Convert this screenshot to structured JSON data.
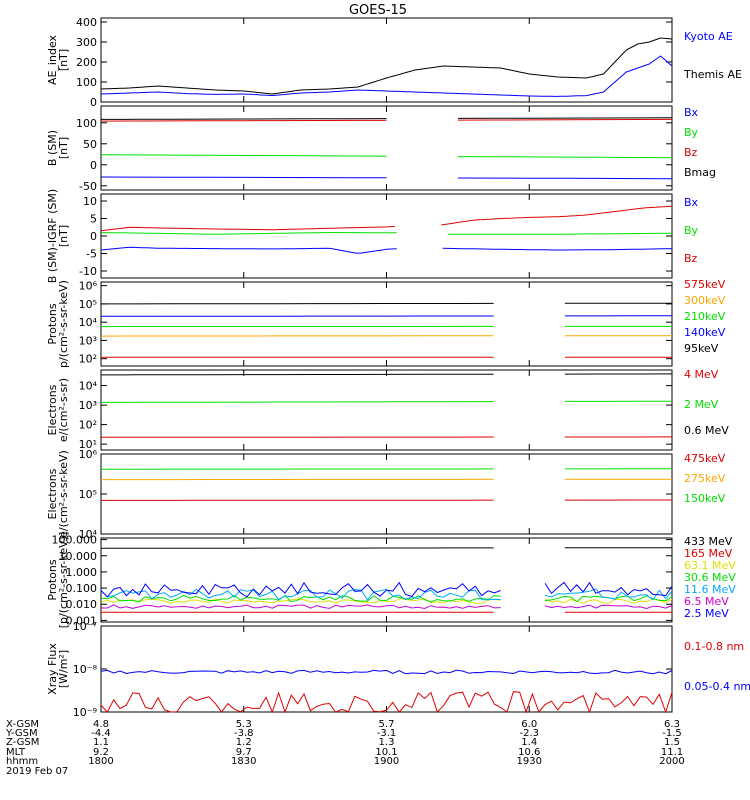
{
  "title": "GOES-15",
  "colors": {
    "black": "#000000",
    "blue": "#0000ff",
    "green": "#00e000",
    "red": "#dd0000",
    "orange": "#ffa500",
    "cyan": "#00aaff",
    "yellow": "#e0e000",
    "magenta": "#cc00cc"
  },
  "ephemeris": {
    "row_labels": [
      "X-GSM",
      "Y-GSM",
      "Z-GSM",
      "MLT",
      "hhmm",
      "2019 Feb 07"
    ],
    "columns": [
      [
        "4.8",
        "-4.4",
        "1.1",
        "9.2",
        "1800"
      ],
      [
        "5.3",
        "-3.8",
        "1.2",
        "9.7",
        "1830"
      ],
      [
        "5.7",
        "-3.1",
        "1.3",
        "10.1",
        "1900"
      ],
      [
        "6.0",
        "-2.3",
        "1.4",
        "10.6",
        "1930"
      ],
      [
        "6.3",
        "-1.5",
        "1.5",
        "11.1",
        "2000"
      ]
    ]
  },
  "chart_data": [
    {
      "type": "line",
      "ylabel": [
        "AE_index",
        "[nT]"
      ],
      "ylim": [
        0,
        420
      ],
      "log": false,
      "ticks": [
        "0",
        "100",
        "200",
        "300",
        "400"
      ],
      "tick_values": [
        0,
        100,
        200,
        300,
        400
      ],
      "x_range": [
        "1800",
        "2000"
      ],
      "series": [
        {
          "name": "Kyoto AE",
          "color": "blue",
          "x": [
            0,
            0.05,
            0.1,
            0.15,
            0.2,
            0.25,
            0.3,
            0.35,
            0.4,
            0.45,
            0.5,
            0.55,
            0.6,
            0.65,
            0.7,
            0.75,
            0.8,
            0.85,
            0.88,
            0.9,
            0.92,
            0.94,
            0.96,
            0.98,
            1.0
          ],
          "y": [
            40,
            45,
            50,
            42,
            38,
            40,
            32,
            45,
            50,
            60,
            55,
            50,
            45,
            40,
            35,
            30,
            28,
            32,
            50,
            100,
            150,
            170,
            190,
            230,
            180
          ],
          "gaps": []
        },
        {
          "name": "Themis AE",
          "color": "black",
          "x": [
            0,
            0.05,
            0.1,
            0.15,
            0.2,
            0.25,
            0.3,
            0.35,
            0.4,
            0.45,
            0.5,
            0.55,
            0.6,
            0.65,
            0.7,
            0.75,
            0.8,
            0.85,
            0.88,
            0.9,
            0.92,
            0.94,
            0.96,
            0.98,
            1.0
          ],
          "y": [
            65,
            70,
            80,
            70,
            60,
            55,
            40,
            60,
            65,
            75,
            120,
            160,
            180,
            175,
            170,
            140,
            125,
            120,
            140,
            200,
            260,
            290,
            300,
            320,
            315
          ],
          "gaps": []
        }
      ]
    },
    {
      "type": "line",
      "ylabel": [
        "B (SM)",
        "[nT]"
      ],
      "ylim": [
        -60,
        140
      ],
      "log": false,
      "ticks": [
        "-50",
        "0",
        "50",
        "100"
      ],
      "tick_values": [
        -50,
        0,
        50,
        100
      ],
      "series": [
        {
          "name": "Bz",
          "color": "red",
          "x": [
            0,
            1
          ],
          "y": [
            104,
            108
          ],
          "gaps": [
            [
              0.52,
              0.59
            ]
          ]
        },
        {
          "name": "Bmag",
          "color": "black",
          "x": [
            0,
            1
          ],
          "y": [
            108,
            112
          ],
          "gaps": [
            [
              0.52,
              0.59
            ]
          ]
        },
        {
          "name": "By",
          "color": "green",
          "x": [
            0,
            1
          ],
          "y": [
            24,
            17
          ],
          "gaps": [
            [
              0.52,
              0.59
            ]
          ]
        },
        {
          "name": "Bx",
          "color": "blue",
          "x": [
            0,
            1
          ],
          "y": [
            -29,
            -33
          ],
          "gaps": [
            [
              0.52,
              0.59
            ]
          ]
        }
      ]
    },
    {
      "type": "line",
      "ylabel": [
        "B (SM)-IGRF (SM)",
        "[nT]"
      ],
      "ylim": [
        -12,
        12
      ],
      "log": false,
      "ticks": [
        "-10",
        "-5",
        "0",
        "5",
        "10"
      ],
      "tick_values": [
        -10,
        -5,
        0,
        5,
        10
      ],
      "series": [
        {
          "name": "Bz",
          "color": "red",
          "x": [
            0,
            0.05,
            0.1,
            0.2,
            0.3,
            0.4,
            0.5,
            0.52,
            0.59,
            0.65,
            0.7,
            0.75,
            0.8,
            0.85,
            0.9,
            0.95,
            1.0
          ],
          "y": [
            1.5,
            2.5,
            2.3,
            2.0,
            1.8,
            2.2,
            2.6,
            2.8,
            3.0,
            4.5,
            5.0,
            5.3,
            5.5,
            6.0,
            7.0,
            8.0,
            8.5
          ],
          "gaps": [
            [
              0.52,
              0.59
            ]
          ]
        },
        {
          "name": "By",
          "color": "green",
          "x": [
            0,
            0.2,
            0.4,
            0.52,
            0.59,
            0.8,
            1.0
          ],
          "y": [
            1.0,
            0.5,
            1.0,
            0.9,
            0.5,
            0.5,
            0.8
          ],
          "gaps": [
            [
              0.52,
              0.59
            ]
          ]
        },
        {
          "name": "Bx",
          "color": "blue",
          "x": [
            0,
            0.05,
            0.1,
            0.2,
            0.3,
            0.4,
            0.45,
            0.5,
            0.52,
            0.59,
            0.7,
            0.8,
            0.9,
            1.0
          ],
          "y": [
            -4.0,
            -3.2,
            -3.5,
            -3.6,
            -3.7,
            -3.5,
            -5.0,
            -3.8,
            -3.6,
            -3.5,
            -3.8,
            -4.0,
            -3.9,
            -3.6
          ],
          "gaps": [
            [
              0.52,
              0.59
            ]
          ]
        }
      ]
    },
    {
      "type": "line",
      "ylabel": [
        "Protons",
        "p/(cm²-s-sr-keV)"
      ],
      "ylim": [
        1.6,
        6.2
      ],
      "log": true,
      "ticks": [
        "10²",
        "10³",
        "10⁴",
        "10⁵",
        "10⁶"
      ],
      "tick_values": [
        2,
        3,
        4,
        5,
        6
      ],
      "series": [
        {
          "name": "575keV",
          "color": "red",
          "x": [
            0,
            1
          ],
          "y": [
            2.08,
            2.08
          ],
          "gaps": [
            [
              0.7,
              0.78
            ]
          ]
        },
        {
          "name": "300keV",
          "color": "orange",
          "x": [
            0,
            1
          ],
          "y": [
            3.24,
            3.26
          ],
          "gaps": [
            [
              0.7,
              0.78
            ]
          ]
        },
        {
          "name": "210keV",
          "color": "green",
          "x": [
            0,
            1
          ],
          "y": [
            3.76,
            3.77
          ],
          "gaps": [
            [
              0.7,
              0.78
            ]
          ]
        },
        {
          "name": "140keV",
          "color": "blue",
          "x": [
            0,
            1
          ],
          "y": [
            4.32,
            4.35
          ],
          "gaps": [
            [
              0.7,
              0.78
            ]
          ]
        },
        {
          "name": "95keV",
          "color": "black",
          "x": [
            0,
            1
          ],
          "y": [
            5.0,
            5.04
          ],
          "gaps": [
            [
              0.7,
              0.78
            ]
          ]
        }
      ]
    },
    {
      "type": "line",
      "ylabel": [
        "Electrons",
        "e/(cm²-s-sr)"
      ],
      "ylim": [
        0.7,
        4.8
      ],
      "log": true,
      "ticks": [
        "10¹",
        "10²",
        "10³",
        "10⁴"
      ],
      "tick_values": [
        1,
        2,
        3,
        4
      ],
      "series": [
        {
          "name": "4 MeV",
          "color": "red",
          "x": [
            0,
            1
          ],
          "y": [
            1.35,
            1.37
          ],
          "gaps": [
            [
              0.7,
              0.77
            ]
          ]
        },
        {
          "name": "2 MeV",
          "color": "green",
          "x": [
            0,
            1
          ],
          "y": [
            3.14,
            3.2
          ],
          "gaps": [
            [
              0.7,
              0.77
            ]
          ]
        },
        {
          "name": "0.6 MeV",
          "color": "black",
          "x": [
            0,
            1
          ],
          "y": [
            4.55,
            4.6
          ],
          "gaps": [
            [
              0.7,
              0.77
            ]
          ]
        }
      ]
    },
    {
      "type": "line",
      "ylabel": [
        "Electrons",
        "e/(cm²-s-sr-keV)"
      ],
      "ylim": [
        4,
        6
      ],
      "log": true,
      "ticks": [
        "10⁴",
        "10⁵",
        "10⁶"
      ],
      "tick_values": [
        4,
        5,
        6
      ],
      "series": [
        {
          "name": "475keV",
          "color": "red",
          "x": [
            0,
            1
          ],
          "y": [
            4.84,
            4.85
          ],
          "gaps": [
            [
              0.7,
              0.77
            ]
          ]
        },
        {
          "name": "275keV",
          "color": "orange",
          "x": [
            0,
            1
          ],
          "y": [
            5.36,
            5.37
          ],
          "gaps": [
            [
              0.7,
              0.77
            ]
          ]
        },
        {
          "name": "150keV",
          "color": "green",
          "x": [
            0,
            1
          ],
          "y": [
            5.62,
            5.63
          ],
          "gaps": [
            [
              0.7,
              0.77
            ]
          ]
        }
      ]
    },
    {
      "type": "line",
      "ylabel": [
        "Protons",
        "[p/(cm²-s-sr-keV)]"
      ],
      "ylim": [
        -3.1,
        2.1
      ],
      "log": true,
      "ticks": [
        "0.001",
        "0.010",
        "0.100",
        "1.000",
        "10.000",
        "100.000"
      ],
      "tick_values": [
        -3,
        -2,
        -1,
        0,
        1,
        2
      ],
      "series": [
        {
          "name": "433 MeV",
          "color": "black",
          "x": [
            0,
            1
          ],
          "y": [
            1.46,
            1.5
          ],
          "gaps": [
            [
              0.7,
              0.77
            ]
          ]
        },
        {
          "name": "165 MeV",
          "color": "red",
          "x": [
            0,
            1
          ],
          "y": [
            -2.5,
            -2.5
          ],
          "gaps": [
            [
              0.7,
              0.77
            ]
          ]
        },
        {
          "name": "63.1 MeV",
          "color": "yellow",
          "x": [
            0,
            1
          ],
          "y": [
            -1.8,
            -1.8
          ],
          "gaps": [
            [
              0.7,
              0.77
            ]
          ],
          "noise": 0.15
        },
        {
          "name": "30.6 MeV",
          "color": "green",
          "x": [
            0,
            1
          ],
          "y": [
            -1.65,
            -1.65
          ],
          "gaps": [
            [
              0.7,
              0.77
            ]
          ],
          "noise": 0.2
        },
        {
          "name": "11.6 MeV",
          "color": "cyan",
          "x": [
            0,
            1
          ],
          "y": [
            -1.4,
            -1.4
          ],
          "gaps": [
            [
              0.7,
              0.77
            ]
          ],
          "noise": 0.35
        },
        {
          "name": "6.5 MeV",
          "color": "magenta",
          "x": [
            0,
            1
          ],
          "y": [
            -2.15,
            -2.15
          ],
          "gaps": [
            [
              0.7,
              0.77
            ]
          ],
          "noise": 0.12
        },
        {
          "name": "2.5 MeV",
          "color": "blue",
          "x": [
            0,
            1
          ],
          "y": [
            -1.1,
            -1.1
          ],
          "gaps": [
            [
              0.7,
              0.77
            ]
          ],
          "noise": 0.45
        }
      ]
    },
    {
      "type": "line",
      "ylabel": [
        "Xray Flux",
        "[W/m²]"
      ],
      "ylim": [
        -9,
        -7
      ],
      "log": true,
      "ticks": [
        "10⁻⁹",
        "10⁻⁸",
        "10⁻⁷"
      ],
      "tick_values": [
        -9,
        -8,
        -7
      ],
      "series": [
        {
          "name": "0.1-0.8 nm",
          "color": "red",
          "x": [
            0,
            1
          ],
          "y": [
            -8.8,
            -8.8
          ],
          "gaps": [],
          "noise": 0.28
        },
        {
          "name": "0.05-0.4 nm",
          "color": "blue",
          "x": [
            0,
            1
          ],
          "y": [
            -8.07,
            -8.07
          ],
          "gaps": [],
          "noise": 0.04
        }
      ]
    }
  ]
}
